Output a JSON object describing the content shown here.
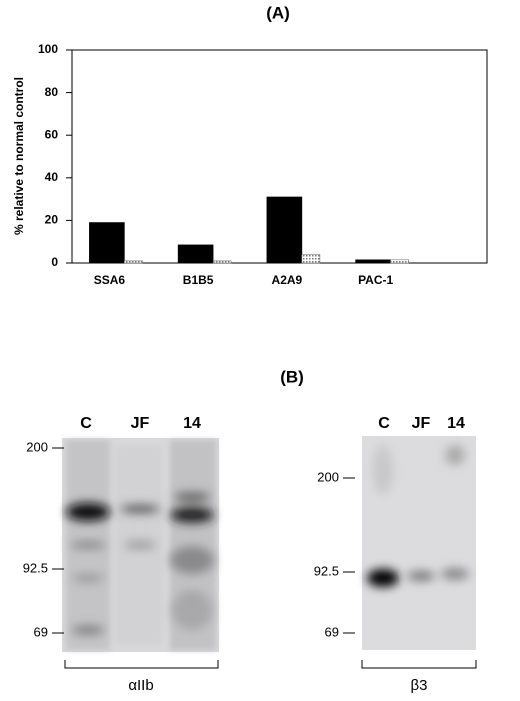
{
  "chart_data": {
    "type": "bar",
    "title": "(A)",
    "y_label": "% relative to normal control",
    "categories": [
      "SSA6",
      "B1B5",
      "A2A9",
      "PAC-1"
    ],
    "series": [
      {
        "color": "#000000",
        "values": [
          19,
          8.5,
          31,
          1.5
        ]
      },
      {
        "color": "#777777",
        "values": [
          1,
          1,
          4,
          1.5
        ]
      }
    ],
    "ylim": [
      0,
      100
    ],
    "yticks": [
      0,
      20,
      40,
      60,
      80,
      100
    ]
  },
  "panel_b": {
    "title": "(B)",
    "left_blot": {
      "lanes": [
        "C",
        "JF",
        "14"
      ],
      "markers": [
        "200",
        "92.5",
        "69"
      ],
      "label": "αIIb"
    },
    "right_blot": {
      "lanes": [
        "C",
        "JF",
        "14"
      ],
      "markers": [
        "200",
        "92.5",
        "69"
      ],
      "label": "β3"
    }
  }
}
